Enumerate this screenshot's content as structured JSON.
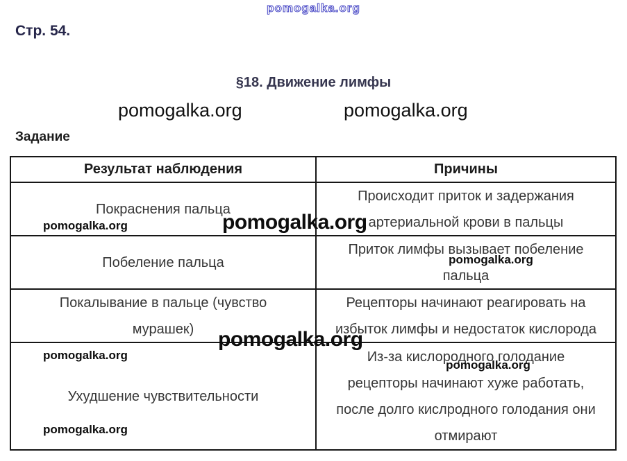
{
  "watermark": "pomogalka.org",
  "page": {
    "page_label": "Стр. 54.",
    "heading": "§18. Движение лимфы",
    "task_label": "Задание"
  },
  "colors": {
    "outline_watermark": "#4545c5",
    "border": "#161616",
    "body_text": "#363636",
    "watermark_text": "#0c0c0c"
  },
  "table": {
    "headers": [
      "Результат наблюдения",
      "Причины"
    ],
    "rows": [
      {
        "left": [
          "Покраснения пальца"
        ],
        "right": [
          "Происходит приток и задержания",
          "артериальной крови в пальцы"
        ]
      },
      {
        "left": [
          "Побеление пальца"
        ],
        "right": [
          "Приток лимфы вызывает побеление",
          "пальца"
        ]
      },
      {
        "left": [
          "Покалывание в пальце (чувство",
          "мурашек)"
        ],
        "right": [
          "Рецепторы начинают реагировать на",
          "избыток лимфы и недостаток кислорода"
        ]
      },
      {
        "left": [
          "Ухудшение чувствительности"
        ],
        "right": [
          "Из-за кислородного голодание",
          "рецепторы начинают хуже работать,",
          "после долго кислродного голодания они",
          "отмирают"
        ]
      }
    ]
  }
}
